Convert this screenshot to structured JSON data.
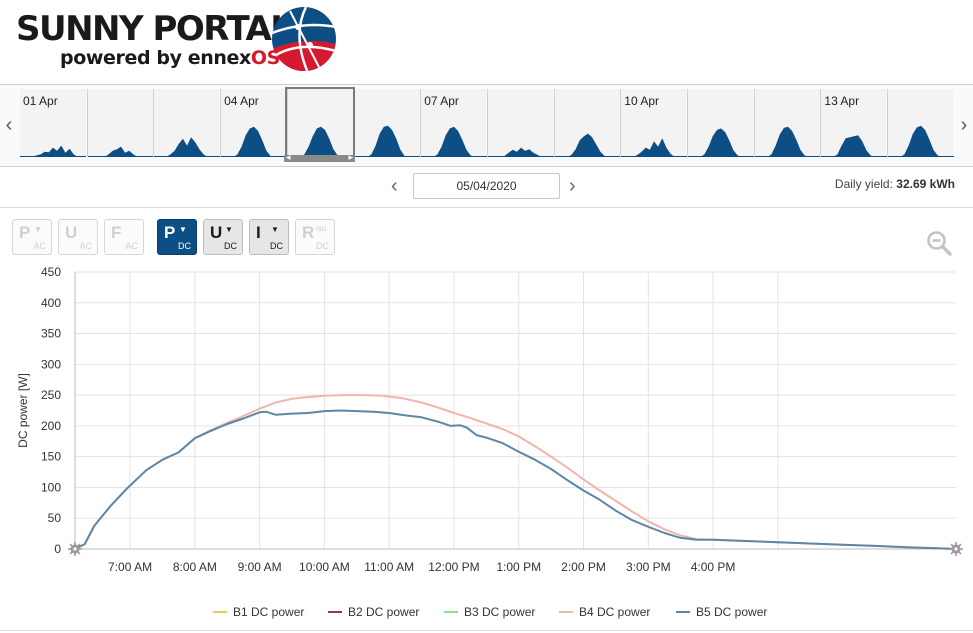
{
  "brand": {
    "title": "SUNNY PORTAL",
    "subtitle_prefix": "powered by ennex",
    "subtitle_suffix": "OS"
  },
  "day_strip": {
    "days": [
      {
        "label": "01 Apr",
        "profile": [
          0,
          0,
          0,
          0.03,
          0.05,
          0.1,
          0.09,
          0.18,
          0.12,
          0.22,
          0.08,
          0.16,
          0.05,
          0,
          0
        ]
      },
      {
        "label": "",
        "profile": [
          0,
          0,
          0,
          0,
          0.05,
          0.12,
          0.15,
          0.2,
          0.08,
          0.12,
          0.05,
          0,
          0,
          0,
          0
        ]
      },
      {
        "label": "",
        "profile": [
          0,
          0,
          0,
          0.05,
          0.12,
          0.25,
          0.35,
          0.22,
          0.38,
          0.28,
          0.15,
          0.05,
          0,
          0,
          0
        ]
      },
      {
        "label": "04 Apr",
        "profile": [
          0,
          0,
          0,
          0.05,
          0.2,
          0.42,
          0.55,
          0.58,
          0.5,
          0.32,
          0.12,
          0.02,
          0,
          0,
          0
        ]
      },
      {
        "label": "",
        "profile": [
          0,
          0,
          0,
          0.05,
          0.2,
          0.4,
          0.55,
          0.58,
          0.52,
          0.35,
          0.15,
          0.03,
          0,
          0,
          0
        ]
      },
      {
        "label": "",
        "profile": [
          0,
          0,
          0,
          0.05,
          0.22,
          0.45,
          0.58,
          0.6,
          0.52,
          0.35,
          0.14,
          0.02,
          0,
          0,
          0
        ]
      },
      {
        "label": "07 Apr",
        "profile": [
          0,
          0,
          0,
          0.05,
          0.2,
          0.42,
          0.55,
          0.58,
          0.5,
          0.33,
          0.14,
          0.03,
          0,
          0,
          0
        ]
      },
      {
        "label": "",
        "profile": [
          0,
          0,
          0,
          0.02,
          0.08,
          0.14,
          0.1,
          0.18,
          0.12,
          0.15,
          0.08,
          0.04,
          0,
          0,
          0
        ]
      },
      {
        "label": "",
        "profile": [
          0,
          0,
          0,
          0.04,
          0.15,
          0.32,
          0.4,
          0.45,
          0.38,
          0.24,
          0.1,
          0.02,
          0,
          0,
          0
        ]
      },
      {
        "label": "10 Apr",
        "profile": [
          0,
          0,
          0,
          0.04,
          0.1,
          0.18,
          0.14,
          0.3,
          0.2,
          0.36,
          0.18,
          0.06,
          0,
          0,
          0
        ]
      },
      {
        "label": "",
        "profile": [
          0,
          0,
          0,
          0.05,
          0.2,
          0.4,
          0.52,
          0.55,
          0.48,
          0.32,
          0.13,
          0.03,
          0,
          0,
          0
        ]
      },
      {
        "label": "",
        "profile": [
          0,
          0,
          0,
          0.05,
          0.22,
          0.43,
          0.56,
          0.58,
          0.5,
          0.33,
          0.14,
          0.03,
          0,
          0,
          0
        ]
      },
      {
        "label": "13 Apr",
        "profile": [
          0,
          0,
          0,
          0.05,
          0.22,
          0.36,
          0.38,
          0.4,
          0.42,
          0.3,
          0.13,
          0.03,
          0,
          0,
          0
        ]
      },
      {
        "label": "",
        "profile": [
          0,
          0,
          0,
          0.05,
          0.22,
          0.44,
          0.57,
          0.6,
          0.52,
          0.34,
          0.14,
          0.03,
          0,
          0,
          0
        ]
      }
    ],
    "selected_index": 4,
    "prev_icon": "chevron-left-icon",
    "next_icon": "chevron-right-icon"
  },
  "date_nav": {
    "date": "05/04/2020",
    "yield_label": "Daily yield:",
    "yield_value": "32.69 kWh"
  },
  "toolbar": {
    "buttons": [
      {
        "letter": "P",
        "sub": "AC",
        "caret": true,
        "state": "disabled"
      },
      {
        "letter": "U",
        "sub": "AC",
        "caret": false,
        "state": "disabled"
      },
      {
        "letter": "F",
        "sub": "AC",
        "caret": false,
        "state": "disabled"
      },
      {
        "letter": "P",
        "sub": "DC",
        "caret": true,
        "state": "active"
      },
      {
        "letter": "U",
        "sub": "DC",
        "caret": true,
        "state": "on"
      },
      {
        "letter": "I",
        "sub": "DC",
        "caret": true,
        "state": "on"
      },
      {
        "letter": "R",
        "sub": "DC",
        "sup": "iso",
        "caret": false,
        "state": "disabled"
      }
    ],
    "zoom_icon": "zoom-out-icon"
  },
  "chart_data": {
    "type": "line",
    "ylabel": "DC power [W]",
    "ylim": [
      0,
      450
    ],
    "yticks": [
      0,
      50,
      100,
      150,
      200,
      250,
      300,
      350,
      400,
      450
    ],
    "xlim": [
      6.15,
      19.75
    ],
    "xticks": [
      {
        "v": 7,
        "label": "7:00 AM"
      },
      {
        "v": 8,
        "label": "8:00 AM"
      },
      {
        "v": 9,
        "label": "9:00 AM"
      },
      {
        "v": 10,
        "label": "10:00 AM"
      },
      {
        "v": 11,
        "label": "11:00 AM"
      },
      {
        "v": 12,
        "label": "12:00 PM"
      },
      {
        "v": 13,
        "label": "1:00 PM"
      },
      {
        "v": 14,
        "label": "2:00 PM"
      },
      {
        "v": 15,
        "label": "3:00 PM"
      },
      {
        "v": 16,
        "label": "4:00 PM"
      }
    ],
    "gridlines_x": [
      7,
      8,
      9,
      10,
      11,
      12,
      13,
      14,
      15,
      16,
      17
    ],
    "grid": true,
    "legend_position": "bottom",
    "series": [
      {
        "name": "B1 DC power",
        "color": "#e7cf52",
        "visible": false,
        "points": []
      },
      {
        "name": "B2 DC power",
        "color": "#8a3c5e",
        "visible": false,
        "points": []
      },
      {
        "name": "B3 DC power",
        "color": "#8fe08a",
        "visible": false,
        "points": []
      },
      {
        "name": "B4 DC power",
        "color": "#f0b5ad",
        "points": [
          [
            6.15,
            0
          ],
          [
            6.3,
            8
          ],
          [
            6.45,
            38
          ],
          [
            6.7,
            70
          ],
          [
            6.95,
            98
          ],
          [
            7.25,
            128
          ],
          [
            7.5,
            145
          ],
          [
            7.75,
            157
          ],
          [
            8.0,
            180
          ],
          [
            8.25,
            193
          ],
          [
            8.5,
            205
          ],
          [
            8.75,
            216
          ],
          [
            9.0,
            228
          ],
          [
            9.25,
            238
          ],
          [
            9.5,
            244
          ],
          [
            9.75,
            247
          ],
          [
            10.0,
            249
          ],
          [
            10.3,
            250
          ],
          [
            10.6,
            250
          ],
          [
            10.9,
            249
          ],
          [
            11.2,
            245
          ],
          [
            11.5,
            238
          ],
          [
            11.75,
            230
          ],
          [
            12.0,
            221
          ],
          [
            12.25,
            213
          ],
          [
            12.5,
            204
          ],
          [
            12.75,
            195
          ],
          [
            13.0,
            183
          ],
          [
            13.25,
            167
          ],
          [
            13.5,
            150
          ],
          [
            13.75,
            132
          ],
          [
            14.0,
            113
          ],
          [
            14.25,
            95
          ],
          [
            14.5,
            78
          ],
          [
            14.75,
            61
          ],
          [
            15.0,
            45
          ],
          [
            15.25,
            32
          ],
          [
            15.5,
            22
          ],
          [
            15.75,
            16
          ],
          [
            16.0,
            15
          ],
          [
            16.5,
            13
          ],
          [
            17.0,
            11
          ],
          [
            17.5,
            9
          ],
          [
            18.0,
            7
          ],
          [
            18.5,
            5
          ],
          [
            19.0,
            3
          ],
          [
            19.5,
            1
          ],
          [
            19.75,
            0
          ]
        ]
      },
      {
        "name": "B5 DC power",
        "color": "#5d87a6",
        "points": [
          [
            6.15,
            0
          ],
          [
            6.3,
            8
          ],
          [
            6.45,
            38
          ],
          [
            6.7,
            70
          ],
          [
            6.95,
            98
          ],
          [
            7.25,
            128
          ],
          [
            7.5,
            145
          ],
          [
            7.75,
            157
          ],
          [
            8.0,
            180
          ],
          [
            8.25,
            192
          ],
          [
            8.5,
            203
          ],
          [
            8.75,
            212
          ],
          [
            9.0,
            222
          ],
          [
            9.1,
            223
          ],
          [
            9.25,
            218
          ],
          [
            9.5,
            220
          ],
          [
            9.75,
            221
          ],
          [
            10.0,
            224
          ],
          [
            10.25,
            225
          ],
          [
            10.5,
            224
          ],
          [
            10.75,
            223
          ],
          [
            11.0,
            221
          ],
          [
            11.25,
            217
          ],
          [
            11.5,
            214
          ],
          [
            11.75,
            207
          ],
          [
            11.95,
            200
          ],
          [
            12.1,
            201
          ],
          [
            12.2,
            197
          ],
          [
            12.35,
            185
          ],
          [
            12.5,
            181
          ],
          [
            12.75,
            172
          ],
          [
            13.0,
            158
          ],
          [
            13.25,
            145
          ],
          [
            13.5,
            130
          ],
          [
            13.75,
            112
          ],
          [
            14.0,
            95
          ],
          [
            14.25,
            80
          ],
          [
            14.5,
            62
          ],
          [
            14.75,
            47
          ],
          [
            15.0,
            36
          ],
          [
            15.25,
            26
          ],
          [
            15.5,
            18
          ],
          [
            15.75,
            15
          ],
          [
            16.0,
            15
          ],
          [
            16.5,
            13
          ],
          [
            17.0,
            11
          ],
          [
            17.5,
            9
          ],
          [
            18.0,
            7
          ],
          [
            18.5,
            5
          ],
          [
            19.0,
            3
          ],
          [
            19.5,
            1
          ],
          [
            19.75,
            0
          ]
        ]
      }
    ]
  }
}
